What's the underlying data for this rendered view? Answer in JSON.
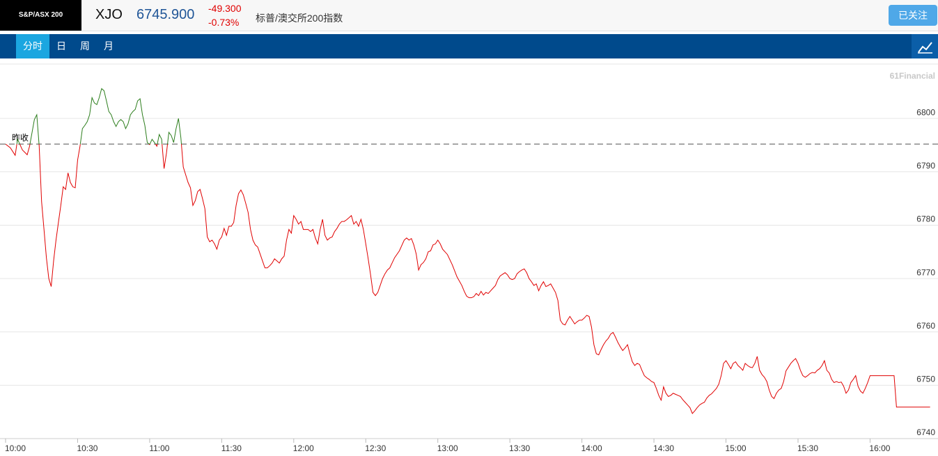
{
  "header": {
    "logo": "S&P/ASX 200",
    "symbol": "XJO",
    "price": "6745.900",
    "change": "-49.300",
    "change_pct": "-0.73%",
    "name": "标普/澳交所200指数",
    "follow_button": "已关注"
  },
  "tabs": {
    "items": [
      "分时",
      "日",
      "周",
      "月"
    ],
    "active": 0
  },
  "chart_data": {
    "type": "line",
    "watermark": "61Financial",
    "prev_close": 6795.2,
    "prev_close_label": "昨收",
    "up_color": "#2b7d1b",
    "down_color": "#e00000",
    "grid": true,
    "xlim": [
      600,
      988
    ],
    "ylim": [
      6740,
      6810.2
    ],
    "xticks": [
      {
        "value": 600,
        "label": "10:00"
      },
      {
        "value": 630,
        "label": "10:30"
      },
      {
        "value": 660,
        "label": "11:00"
      },
      {
        "value": 690,
        "label": "11:30"
      },
      {
        "value": 720,
        "label": "12:00"
      },
      {
        "value": 750,
        "label": "12:30"
      },
      {
        "value": 780,
        "label": "13:00"
      },
      {
        "value": 810,
        "label": "13:30"
      },
      {
        "value": 840,
        "label": "14:00"
      },
      {
        "value": 870,
        "label": "14:30"
      },
      {
        "value": 900,
        "label": "15:00"
      },
      {
        "value": 930,
        "label": "15:30"
      },
      {
        "value": 960,
        "label": "16:00"
      }
    ],
    "yticks": [
      6740,
      6750,
      6760,
      6770,
      6780,
      6790,
      6800
    ],
    "x": [
      600,
      602,
      604,
      605,
      607,
      609,
      610,
      612,
      613,
      614,
      615,
      616,
      617,
      618,
      619,
      620,
      621,
      622,
      623,
      624,
      625,
      626,
      627,
      628,
      629,
      630,
      631,
      632,
      633,
      634,
      635,
      636,
      637,
      638,
      639,
      640,
      641,
      642,
      643,
      644,
      645,
      646,
      647,
      648,
      649,
      650,
      651,
      652,
      653,
      654,
      655,
      656,
      657,
      658,
      659,
      660,
      661,
      662,
      663,
      664,
      665,
      666,
      667,
      668,
      669,
      670,
      671,
      672,
      673,
      674,
      676,
      677,
      678,
      679,
      680,
      681,
      682,
      683,
      684,
      685,
      686,
      687,
      688,
      689,
      690,
      691,
      692,
      693,
      694,
      695,
      696,
      697,
      698,
      699,
      700,
      701,
      702,
      703,
      704,
      705,
      706,
      707,
      708,
      709,
      710,
      711,
      712,
      713,
      714,
      715,
      716,
      717,
      718,
      719,
      720,
      721,
      722,
      723,
      724,
      725,
      726,
      727,
      728,
      729,
      730,
      731,
      732,
      733,
      734,
      735,
      736,
      737,
      738,
      739,
      740,
      741,
      742,
      743,
      744,
      745,
      746,
      747,
      748,
      749,
      750,
      751,
      752,
      753,
      754,
      755,
      756,
      757,
      758,
      759,
      760,
      762,
      764,
      766,
      767,
      768,
      769,
      770,
      771,
      772,
      773,
      774,
      775,
      776,
      777,
      778,
      779,
      780,
      781,
      782,
      784,
      786,
      788,
      790,
      791,
      792,
      793,
      794,
      795,
      796,
      797,
      798,
      799,
      800,
      801,
      802,
      803,
      804,
      805,
      806,
      807,
      808,
      809,
      810,
      811,
      812,
      813,
      814,
      815,
      816,
      817,
      818,
      819,
      820,
      821,
      822,
      823,
      824,
      825,
      826,
      827,
      828,
      829,
      830,
      831,
      832,
      833,
      834,
      835,
      836,
      837,
      838,
      839,
      840,
      841,
      842,
      843,
      844,
      845,
      846,
      847,
      848,
      849,
      850,
      851,
      852,
      853,
      854,
      855,
      856,
      857,
      858,
      859,
      860,
      861,
      862,
      863,
      864,
      865,
      866,
      867,
      868,
      869,
      870,
      871,
      872,
      873,
      874,
      875,
      876,
      877,
      878,
      879,
      880,
      881,
      882,
      883,
      884,
      885,
      886,
      887,
      888,
      889,
      890,
      891,
      892,
      893,
      894,
      895,
      896,
      897,
      898,
      899,
      900,
      901,
      902,
      903,
      904,
      905,
      906,
      907,
      908,
      909,
      910,
      911,
      912,
      913,
      914,
      915,
      916,
      917,
      918,
      919,
      920,
      921,
      922,
      923,
      924,
      925,
      926,
      927,
      928,
      929,
      930,
      931,
      932,
      933,
      934,
      935,
      936,
      937,
      938,
      939,
      940,
      941,
      942,
      943,
      944,
      945,
      946,
      947,
      948,
      949,
      950,
      951,
      952,
      953,
      954,
      955,
      956,
      957,
      958,
      959,
      960,
      970,
      971,
      985
    ],
    "values": [
      6795.2,
      6794.5,
      6793.1,
      6796.1,
      6794.1,
      6793.2,
      6794.8,
      6799.8,
      6800.7,
      6794.8,
      6784.4,
      6779.2,
      6773.9,
      6770.0,
      6768.5,
      6773.3,
      6777.2,
      6780.5,
      6783.7,
      6787.2,
      6786.7,
      6789.8,
      6788.0,
      6787.2,
      6787.0,
      6792.2,
      6794.8,
      6798.1,
      6798.7,
      6799.4,
      6800.7,
      6803.9,
      6802.9,
      6802.6,
      6803.9,
      6805.6,
      6805.2,
      6803.3,
      6801.3,
      6800.7,
      6799.4,
      6798.5,
      6799.4,
      6799.8,
      6799.4,
      6798.1,
      6799.0,
      6800.7,
      6801.3,
      6801.7,
      6803.3,
      6803.7,
      6800.7,
      6798.7,
      6795.5,
      6795.1,
      6796.1,
      6795.5,
      6794.8,
      6797.0,
      6796.1,
      6790.6,
      6793.5,
      6797.4,
      6796.8,
      6795.5,
      6798.1,
      6800.0,
      6796.4,
      6790.9,
      6788.0,
      6787.0,
      6783.7,
      6784.6,
      6786.3,
      6786.7,
      6785.0,
      6783.1,
      6777.8,
      6776.9,
      6777.2,
      6776.5,
      6775.5,
      6777.2,
      6777.8,
      6779.4,
      6778.1,
      6779.8,
      6779.8,
      6780.5,
      6783.7,
      6785.9,
      6786.6,
      6785.7,
      6784.1,
      6782.4,
      6779.2,
      6777.2,
      6776.3,
      6775.9,
      6774.6,
      6773.3,
      6772.0,
      6772.0,
      6772.4,
      6772.9,
      6773.7,
      6773.3,
      6772.9,
      6773.7,
      6774.2,
      6777.2,
      6779.2,
      6778.5,
      6781.8,
      6781.1,
      6780.2,
      6780.7,
      6779.2,
      6779.2,
      6779.2,
      6778.8,
      6779.2,
      6777.6,
      6776.5,
      6779.2,
      6781.1,
      6778.1,
      6777.2,
      6777.6,
      6777.8,
      6778.8,
      6779.4,
      6780.2,
      6780.7,
      6780.7,
      6781.0,
      6781.4,
      6781.8,
      6780.2,
      6780.7,
      6779.8,
      6781.1,
      6779.2,
      6776.5,
      6773.7,
      6770.7,
      6767.4,
      6766.8,
      6767.4,
      6768.7,
      6770.0,
      6770.9,
      6771.6,
      6772.0,
      6773.9,
      6775.2,
      6777.2,
      6777.6,
      6777.2,
      6777.5,
      6776.3,
      6774.6,
      6771.6,
      6772.6,
      6773.0,
      6773.7,
      6775.0,
      6775.2,
      6776.3,
      6776.5,
      6777.2,
      6776.5,
      6775.5,
      6774.5,
      6772.6,
      6770.3,
      6768.7,
      6767.6,
      6766.7,
      6766.4,
      6766.4,
      6766.6,
      6767.2,
      6766.8,
      6767.6,
      6766.9,
      6767.4,
      6767.2,
      6767.7,
      6768.2,
      6768.7,
      6769.8,
      6770.5,
      6770.8,
      6771.1,
      6770.7,
      6770.0,
      6769.8,
      6770.0,
      6770.9,
      6771.3,
      6771.6,
      6771.8,
      6771.1,
      6770.0,
      6769.4,
      6768.7,
      6769.0,
      6767.7,
      6768.7,
      6769.4,
      6768.5,
      6768.7,
      6769.0,
      6768.2,
      6767.4,
      6765.9,
      6762.2,
      6761.5,
      6761.3,
      6762.2,
      6762.9,
      6762.2,
      6761.5,
      6761.9,
      6762.2,
      6762.2,
      6762.6,
      6763.1,
      6762.9,
      6760.9,
      6757.6,
      6755.9,
      6755.7,
      6756.7,
      6757.6,
      6758.3,
      6758.8,
      6759.6,
      6759.9,
      6759.0,
      6758.0,
      6757.2,
      6756.5,
      6757.0,
      6757.6,
      6755.9,
      6754.4,
      6753.7,
      6754.1,
      6753.9,
      6752.8,
      6751.8,
      6751.4,
      6751.1,
      6750.7,
      6750.5,
      6749.4,
      6748.1,
      6747.2,
      6749.7,
      6748.5,
      6747.9,
      6748.1,
      6748.5,
      6748.3,
      6748.1,
      6747.9,
      6747.3,
      6746.8,
      6746.3,
      6745.8,
      6744.7,
      6745.2,
      6745.8,
      6746.3,
      6746.6,
      6746.8,
      6747.6,
      6748.1,
      6748.4,
      6748.9,
      6749.4,
      6750.2,
      6751.8,
      6754.1,
      6754.6,
      6753.9,
      6753.1,
      6754.1,
      6754.4,
      6753.7,
      6753.3,
      6752.8,
      6754.1,
      6753.7,
      6753.4,
      6753.3,
      6754.1,
      6755.4,
      6752.8,
      6752.0,
      6751.5,
      6750.7,
      6749.1,
      6747.9,
      6747.5,
      6748.5,
      6749.1,
      6749.4,
      6750.7,
      6752.7,
      6753.4,
      6754.1,
      6754.6,
      6755.0,
      6754.1,
      6752.8,
      6751.8,
      6751.5,
      6751.8,
      6752.2,
      6752.4,
      6752.3,
      6752.8,
      6753.1,
      6753.7,
      6754.6,
      6752.8,
      6752.3,
      6751.1,
      6750.5,
      6750.7,
      6750.5,
      6750.6,
      6749.8,
      6748.5,
      6749.1,
      6750.5,
      6751.1,
      6751.8,
      6749.8,
      6748.9,
      6748.5,
      6749.4,
      6750.5,
      6751.8,
      6751.8,
      6745.9,
      6745.9
    ]
  }
}
